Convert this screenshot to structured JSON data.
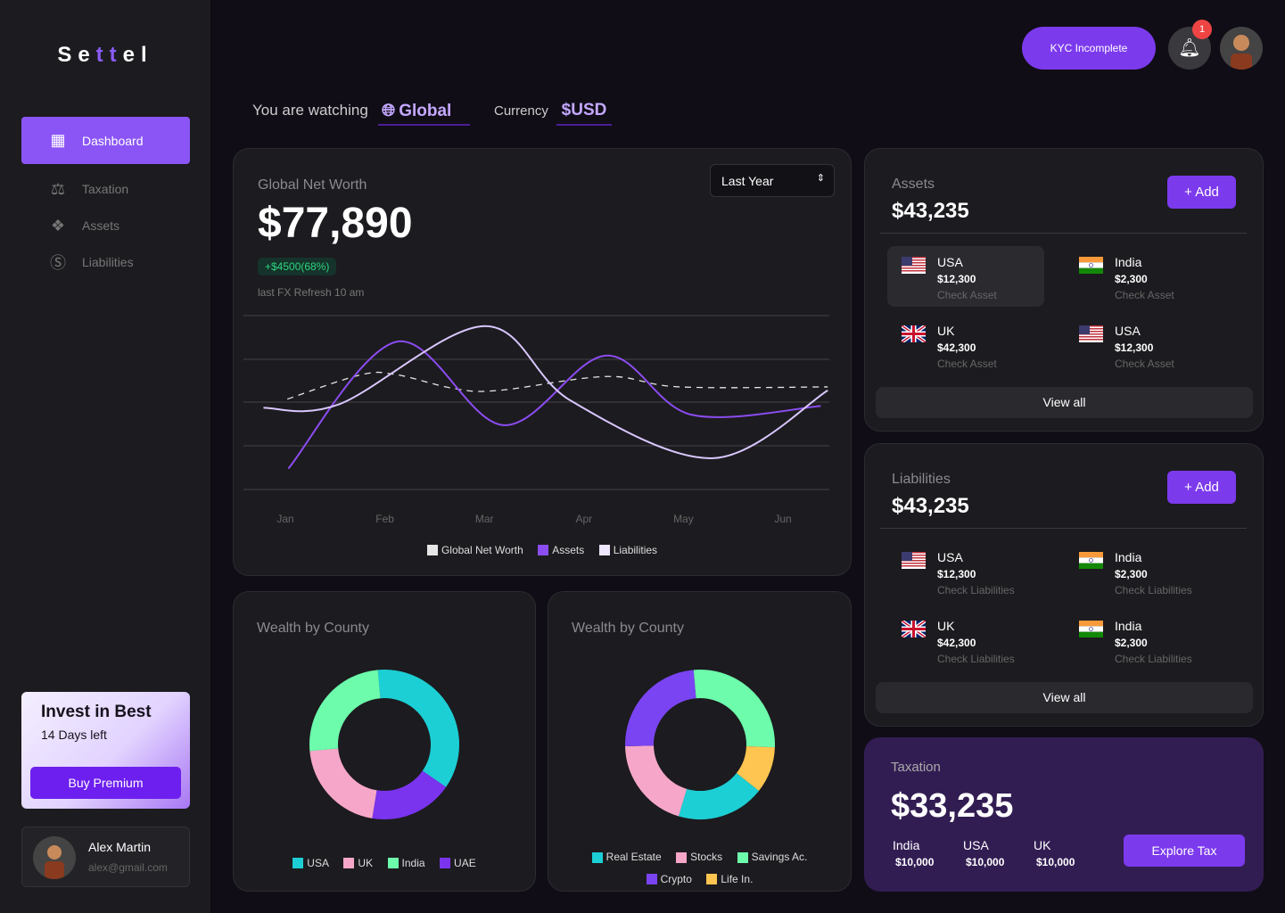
{
  "brand": {
    "name_a": "Se",
    "name_b": "tt",
    "name_c": "el",
    "accent": "#8b5cf6"
  },
  "sidebar": {
    "items": [
      {
        "label": "Dashboard",
        "icon": "dashboard-grid-icon",
        "active": true
      },
      {
        "label": "Taxation",
        "icon": "scale-icon"
      },
      {
        "label": "Assets",
        "icon": "cubes-icon"
      },
      {
        "label": "Liabilities",
        "icon": "dollar-circle-icon"
      }
    ]
  },
  "promo": {
    "title": "Invest in Best",
    "subtitle": "14 Days left",
    "button": "Buy Premium"
  },
  "user": {
    "name": "Alex Martin",
    "email": "alex@gmail.com"
  },
  "header": {
    "kyc": "KYC Incomplete",
    "notif_count": "1"
  },
  "context": {
    "watching_label": "You are watching",
    "watching_value": "Global",
    "currency_label": "Currency",
    "currency_value": "$USD"
  },
  "networth": {
    "title": "Global Net Worth",
    "value": "$77,890",
    "change": "+$4500(68%)",
    "refresh": "last FX Refresh 10 am",
    "period": "Last Year"
  },
  "chart_data": {
    "type": "line",
    "categories": [
      "Jan",
      "Feb",
      "Mar",
      "Apr",
      "May",
      "Jun"
    ],
    "grid": true,
    "legend_position": "bottom",
    "series": [
      {
        "name": "Global Net Worth",
        "color": "#e6e6e6",
        "dashed": true,
        "points": [
          [
            0.02,
            52
          ],
          [
            0.76,
            66
          ],
          [
            1.12,
            66
          ],
          [
            1.7,
            58
          ],
          [
            2.15,
            57
          ],
          [
            3.23,
            65
          ],
          [
            3.96,
            59
          ],
          [
            5.45,
            59
          ]
        ]
      },
      {
        "name": "Assets",
        "color": "#8b4cf0",
        "points": [
          [
            0.03,
            12
          ],
          [
            1.12,
            85
          ],
          [
            2.19,
            37
          ],
          [
            3.22,
            77
          ],
          [
            4.08,
            43
          ],
          [
            5.38,
            48
          ]
        ]
      },
      {
        "name": "Liabilities",
        "color": "#d9c7ff",
        "points": [
          [
            -0.22,
            47
          ],
          [
            0.54,
            49
          ],
          [
            2.0,
            94
          ],
          [
            2.87,
            51
          ],
          [
            4.3,
            18
          ],
          [
            5.45,
            57
          ]
        ]
      }
    ]
  },
  "wealth_country": {
    "title": "Wealth by County",
    "chart_data": {
      "type": "pie",
      "donut": true,
      "slices": [
        {
          "name": "USA",
          "value": 36,
          "color": "#1ccfd4"
        },
        {
          "name": "UAE",
          "value": 18,
          "color": "#7a34ee"
        },
        {
          "name": "UK",
          "value": 21,
          "color": "#f6a7c9"
        },
        {
          "name": "India",
          "value": 25,
          "color": "#6dfbac"
        }
      ]
    },
    "legend": [
      "USA",
      "UK",
      "India",
      "UAE"
    ]
  },
  "wealth_type": {
    "title": "Wealth by County",
    "chart_data": {
      "type": "pie",
      "donut": true,
      "slices": [
        {
          "name": "Savings Ac.",
          "value": 27,
          "color": "#6dfbac"
        },
        {
          "name": "Life In.",
          "value": 10,
          "color": "#fec550"
        },
        {
          "name": "Real Estate",
          "value": 19,
          "color": "#1ccfd4"
        },
        {
          "name": "Stocks",
          "value": 20,
          "color": "#f6a7c9"
        },
        {
          "name": "Crypto",
          "value": 24,
          "color": "#7a44f2"
        }
      ]
    },
    "legend": [
      "Real Estate",
      "Stocks",
      "Savings Ac.",
      "Crypto",
      "Life In."
    ]
  },
  "assets": {
    "title": "Assets",
    "value": "$43,235",
    "add": "Add",
    "view_all": "View all",
    "items": [
      {
        "country": "USA",
        "flag": "us",
        "amount": "$12,300",
        "link": "Check Asset"
      },
      {
        "country": "India",
        "flag": "in",
        "amount": "$2,300",
        "link": "Check Asset"
      },
      {
        "country": "UK",
        "flag": "uk",
        "amount": "$42,300",
        "link": "Check Asset"
      },
      {
        "country": "USA",
        "flag": "us",
        "amount": "$12,300",
        "link": "Check Asset"
      }
    ]
  },
  "liabilities": {
    "title": "Liabilities",
    "value": "$43,235",
    "add": "Add",
    "view_all": "View all",
    "items": [
      {
        "country": "USA",
        "flag": "us",
        "amount": "$12,300",
        "link": "Check Liabilities"
      },
      {
        "country": "India",
        "flag": "in",
        "amount": "$2,300",
        "link": "Check Liabilities"
      },
      {
        "country": "UK",
        "flag": "uk",
        "amount": "$42,300",
        "link": "Check Liabilities"
      },
      {
        "country": "India",
        "flag": "in",
        "amount": "$2,300",
        "link": "Check Liabilities"
      }
    ]
  },
  "taxation": {
    "title": "Taxation",
    "value": "$33,235",
    "button": "Explore Tax",
    "items": [
      {
        "country": "India",
        "amount": "$10,000"
      },
      {
        "country": "USA",
        "amount": "$10,000"
      },
      {
        "country": "UK",
        "amount": "$10,000"
      }
    ]
  }
}
